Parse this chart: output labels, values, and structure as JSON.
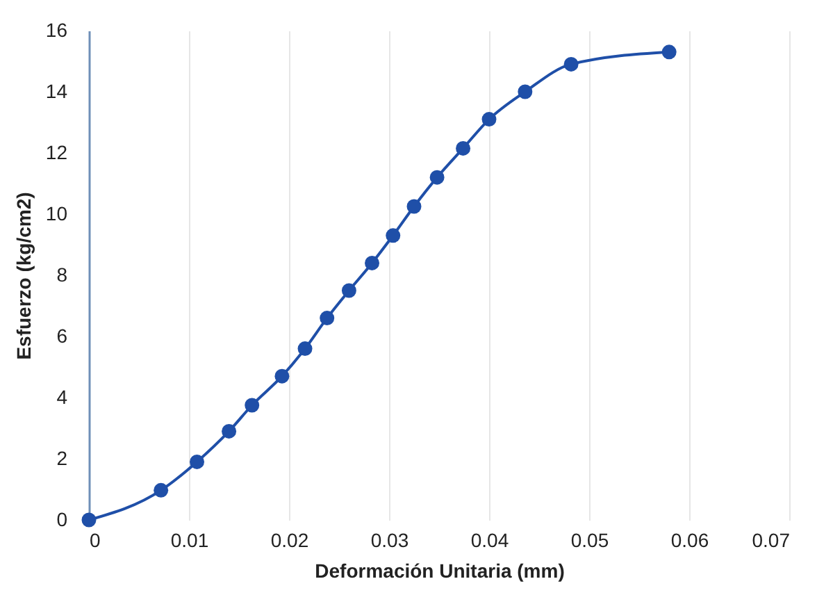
{
  "chart_data": {
    "type": "line",
    "xlabel": "Deformación Unitaria (mm)",
    "ylabel": "Esfuerzo (kg/cm2)",
    "x": [
      0,
      0.0072,
      0.0108,
      0.014,
      0.0163,
      0.0193,
      0.0216,
      0.0238,
      0.026,
      0.0283,
      0.0304,
      0.0325,
      0.0348,
      0.0374,
      0.04,
      0.0436,
      0.0482,
      0.058
    ],
    "series": [
      {
        "color": "#1f4fa8",
        "values": [
          0,
          0.97,
          1.9,
          2.9,
          3.75,
          4.7,
          5.6,
          6.6,
          7.5,
          8.4,
          9.3,
          10.25,
          11.2,
          12.15,
          13.1,
          14.0,
          14.9,
          15.3
        ]
      }
    ],
    "xlim": [
      0,
      0.07
    ],
    "xticks": [
      0,
      0.01,
      0.02,
      0.03,
      0.04,
      0.05,
      0.06,
      0.07
    ],
    "ylim": [
      0,
      16
    ],
    "yticks": [
      0,
      2,
      4,
      6,
      8,
      10,
      12,
      14,
      16
    ],
    "grid": "x",
    "marker": "circle",
    "line_style": "solid"
  }
}
